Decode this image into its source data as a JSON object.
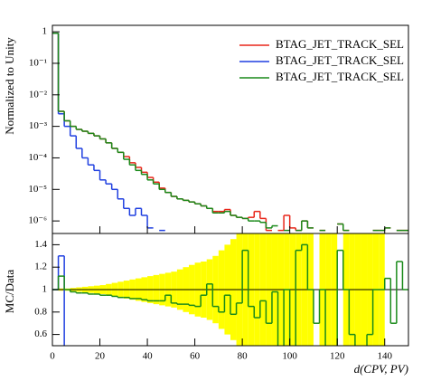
{
  "chart_data": [
    {
      "type": "histogram",
      "log": true,
      "legend": "upper right",
      "ylabel": "Normalized to Unity",
      "xlim": [
        0,
        150
      ],
      "xticks": [
        0,
        20,
        40,
        60,
        80,
        100,
        120,
        140
      ],
      "ylim": [
        4e-07,
        1.6
      ],
      "yticks": [
        {
          "value": 1e-06,
          "label": "10⁻⁶"
        },
        {
          "value": 1e-05,
          "label": "10⁻⁵"
        },
        {
          "value": 0.0001,
          "label": "10⁻⁴"
        },
        {
          "value": 0.001,
          "label": "10⁻³"
        },
        {
          "value": 0.01,
          "label": "10⁻²"
        },
        {
          "value": 0.1,
          "label": "10⁻¹"
        },
        1
      ],
      "bins": [
        0,
        2.5,
        5,
        7.5,
        10,
        12.5,
        15,
        17.5,
        20,
        22.5,
        25,
        27.5,
        30,
        32.5,
        35,
        37.5,
        40,
        42.5,
        45,
        47.5,
        50,
        52.5,
        55,
        57.5,
        60,
        62.5,
        65,
        67.5,
        70,
        72.5,
        75,
        77.5,
        80,
        82.5,
        85,
        87.5,
        90,
        92.5,
        95,
        97.5,
        100,
        102.5,
        105,
        107.5,
        110,
        112.5,
        115,
        117.5,
        120,
        122.5,
        125,
        127.5,
        130,
        132.5,
        135,
        137.5,
        140,
        142.5,
        145,
        147.5,
        150
      ],
      "series": [
        {
          "name": "BTAG_JET_TRACK_SEL",
          "color": "#e8261a",
          "values": [
            0.9,
            0.003,
            0.0015,
            0.001,
            0.0008,
            0.0007,
            0.0006,
            0.0005,
            0.0004,
            0.0003,
            0.0002,
            0.00015,
            0.00011,
            7e-05,
            5e-05,
            3.5e-05,
            2.4e-05,
            1.7e-05,
            1.1e-05,
            8e-06,
            6e-06,
            5e-06,
            4.5e-06,
            4e-06,
            3.5e-06,
            3e-06,
            2.5e-06,
            2e-06,
            2e-06,
            2.3e-06,
            1.5e-06,
            1.3e-06,
            1.2e-06,
            1.3e-06,
            2e-06,
            1.2e-06,
            5e-07,
            null,
            5e-07,
            1.5e-06,
            6e-07,
            5e-07,
            1e-06,
            6e-07,
            null,
            5e-07,
            null,
            null,
            8e-07,
            5e-07,
            null,
            null,
            null,
            null,
            5e-07,
            5e-07,
            6e-07,
            null,
            5e-07,
            5e-07
          ]
        },
        {
          "name": "BTAG_JET_TRACK_SEL",
          "color": "#1f3fe0",
          "values": [
            0.9,
            0.0025,
            0.001,
            0.0005,
            0.0002,
            0.0001,
            6e-05,
            4e-05,
            2e-05,
            1.5e-05,
            1e-05,
            5e-06,
            2.5e-06,
            1.5e-06,
            2.5e-06,
            1.5e-06,
            6e-07,
            null,
            5e-07,
            null,
            null,
            null,
            null,
            null,
            null,
            null,
            null,
            null,
            null,
            null,
            null,
            null,
            null,
            null,
            null,
            null,
            null,
            null,
            null,
            null,
            null,
            null,
            null,
            null,
            null,
            null,
            null,
            null,
            null,
            null,
            null,
            null,
            null,
            null,
            null,
            null,
            null,
            null,
            null,
            null
          ]
        },
        {
          "name": "BTAG_JET_TRACK_SEL",
          "color": "#1a8a1a",
          "values": [
            0.9,
            0.003,
            0.0015,
            0.001,
            0.0008,
            0.0007,
            0.0006,
            0.0005,
            0.0004,
            0.0003,
            0.0002,
            0.00015,
            9e-05,
            6e-05,
            4e-05,
            3e-05,
            2e-05,
            1.5e-05,
            1e-05,
            8e-06,
            6e-06,
            5e-06,
            4.5e-06,
            4e-06,
            3.5e-06,
            3e-06,
            2.5e-06,
            1.8e-06,
            1.8e-06,
            2e-06,
            1.5e-06,
            1.3e-06,
            1.2e-06,
            1e-06,
            1e-06,
            9e-07,
            6e-07,
            7e-07,
            null,
            5e-07,
            null,
            5e-07,
            1e-06,
            6e-07,
            null,
            5e-07,
            null,
            null,
            8e-07,
            5e-07,
            null,
            null,
            null,
            null,
            5e-07,
            5e-07,
            6e-07,
            null,
            5e-07,
            5e-07
          ]
        }
      ]
    },
    {
      "type": "ratio",
      "ylabel": "MC/Data",
      "xlabel": "d(CPV, PV)",
      "xlim": [
        0,
        150
      ],
      "xticks": [
        0,
        20,
        40,
        60,
        80,
        100,
        120,
        140
      ],
      "ylim": [
        0.5,
        1.5
      ],
      "yticks": [
        0.6,
        0.8,
        1,
        1.2,
        1.4
      ],
      "bins": [
        0,
        2.5,
        5,
        7.5,
        10,
        12.5,
        15,
        17.5,
        20,
        22.5,
        25,
        27.5,
        30,
        32.5,
        35,
        37.5,
        40,
        42.5,
        45,
        47.5,
        50,
        52.5,
        55,
        57.5,
        60,
        62.5,
        65,
        67.5,
        70,
        72.5,
        75,
        77.5,
        80,
        82.5,
        85,
        87.5,
        90,
        92.5,
        95,
        97.5,
        100,
        102.5,
        105,
        107.5,
        110,
        112.5,
        115,
        117.5,
        120,
        122.5,
        125,
        127.5,
        130,
        132.5,
        135,
        137.5,
        140,
        142.5,
        145,
        147.5,
        150
      ],
      "band": {
        "color": "#ffff00",
        "errors": [
          0.005,
          0.01,
          0.01,
          0.015,
          0.02,
          0.025,
          0.03,
          0.035,
          0.04,
          0.05,
          0.06,
          0.07,
          0.08,
          0.09,
          0.1,
          0.11,
          0.12,
          0.13,
          0.14,
          0.15,
          0.16,
          0.18,
          0.2,
          0.22,
          0.24,
          0.25,
          0.27,
          0.3,
          0.35,
          0.4,
          0.45,
          0.6,
          0.6,
          0.6,
          0.6,
          0.6,
          0.6,
          0.6,
          0.6,
          0.6,
          0.6,
          0.6,
          0.6,
          0.6,
          null,
          0.6,
          0.6,
          0.6,
          null,
          0.6,
          0.6,
          0.6,
          0.6,
          0.6,
          0.6,
          0.6,
          null,
          null,
          null,
          null
        ]
      },
      "reference": 1,
      "ratios": [
        {
          "color": "#1f3fe0",
          "values": [
            1.0,
            1.3,
            0.45,
            null,
            null,
            null,
            null,
            null,
            null,
            null,
            null,
            null,
            null,
            null,
            null,
            null,
            null,
            null,
            null,
            null,
            null,
            null,
            null,
            null,
            null,
            null,
            null,
            null,
            null,
            null,
            null,
            null,
            null,
            null,
            null,
            null,
            null,
            null,
            null,
            null,
            null,
            null,
            null,
            null,
            null,
            null,
            null,
            null,
            null,
            null,
            null,
            null,
            null,
            null,
            null,
            null,
            null,
            null,
            null,
            null
          ]
        },
        {
          "color": "#1a8a1a",
          "values": [
            1.0,
            1.12,
            1.0,
            0.98,
            0.97,
            0.97,
            0.96,
            0.96,
            0.95,
            0.95,
            0.94,
            0.93,
            0.93,
            0.92,
            0.92,
            0.91,
            0.9,
            0.9,
            0.9,
            0.95,
            0.88,
            0.87,
            0.87,
            0.86,
            0.85,
            0.95,
            1.05,
            0.85,
            0.8,
            0.95,
            0.78,
            0.88,
            1.35,
            0.85,
            0.75,
            0.9,
            0.7,
            0.98,
            0.45,
            1.0,
            0.45,
            1.35,
            1.4,
            1.0,
            0.7,
            1.0,
            0.45,
            0.45,
            1.35,
            1.0,
            0.6,
            0.45,
            0.45,
            0.6,
            1.0,
            1.0,
            1.1,
            0.7,
            1.25,
            1.0
          ]
        }
      ]
    }
  ]
}
